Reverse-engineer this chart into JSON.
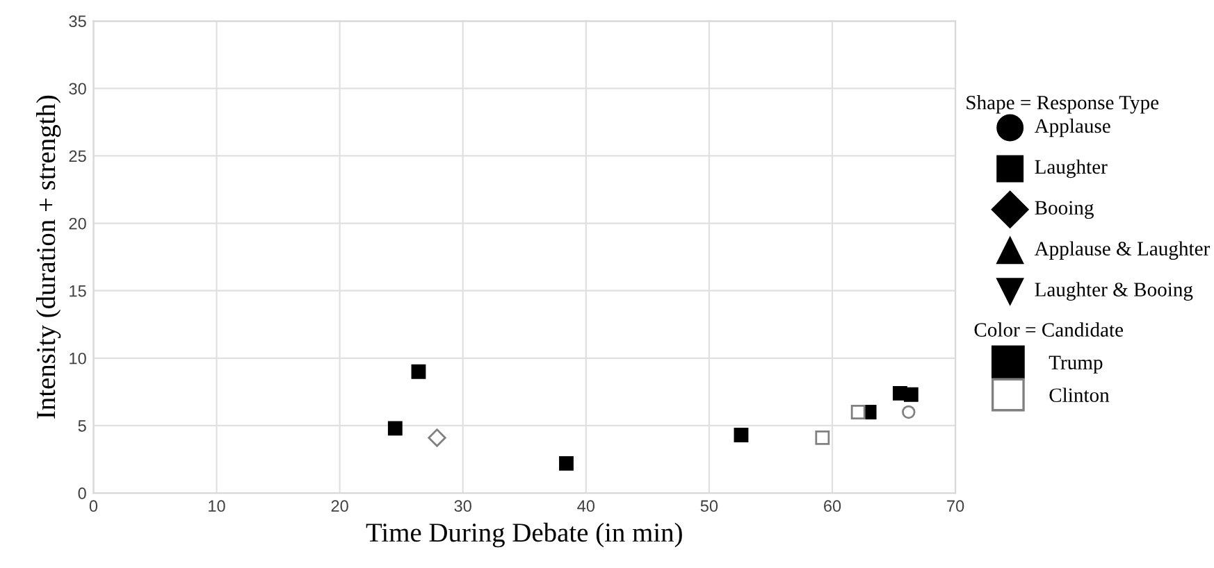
{
  "chart_data": {
    "type": "scatter",
    "xlabel": "Time During Debate (in min)",
    "ylabel": "Intensity (duration + strength)",
    "xlim": [
      0,
      70
    ],
    "xticks": [
      0,
      10,
      20,
      30,
      40,
      50,
      60,
      70
    ],
    "ylim": [
      0,
      35
    ],
    "yticks": [
      0,
      5,
      10,
      15,
      20,
      25,
      30,
      35
    ],
    "grid": true,
    "legend": "right",
    "legend_title": "Color = Candidate",
    "annotations": [
      "Shape = Response Type",
      "Applause",
      "Laughter",
      "Booing",
      "Applause & Laughter",
      "Laughter & Booing"
    ],
    "series": [
      {
        "name": "Trump",
        "marker": "square",
        "color": "#000000",
        "x": [
          24.5,
          26.4,
          38.4,
          52.6,
          63.0,
          65.5,
          66.4
        ],
        "values": [
          4.8,
          9.0,
          2.2,
          4.3,
          6.0,
          7.4,
          7.3
        ]
      },
      {
        "name": "Clinton",
        "marker": "square",
        "color": "#ffffff",
        "x": [
          59.2,
          62.1
        ],
        "values": [
          4.1,
          6.0
        ]
      },
      {
        "marker": "circle",
        "color": "#ffffff",
        "x": [
          66.2
        ],
        "values": [
          6.0
        ]
      },
      {
        "marker": "diamond",
        "color": "#ffffff",
        "x": [
          27.9
        ],
        "values": [
          4.1
        ]
      }
    ]
  }
}
